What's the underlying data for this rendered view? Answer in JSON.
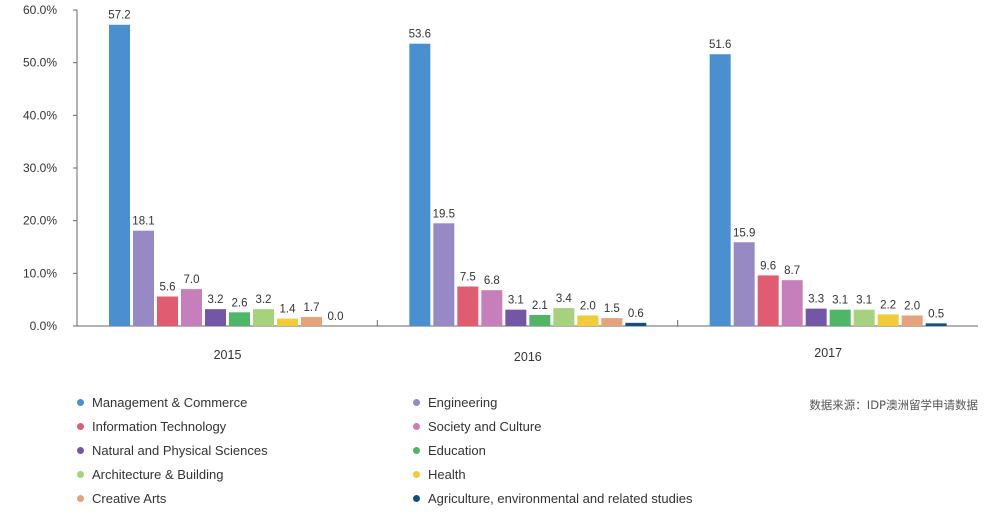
{
  "chart_data": {
    "type": "bar",
    "categories": [
      "2015",
      "2016",
      "2017"
    ],
    "ylim": [
      0,
      60
    ],
    "yticks": [
      "0.0%",
      "10.0%",
      "20.0%",
      "30.0%",
      "40.0%",
      "50.0%",
      "60.0%"
    ],
    "grid": false,
    "legend_position": "bottom",
    "series": [
      {
        "name": "Management & Commerce",
        "color": "#4A90D1",
        "values": [
          57.2,
          53.6,
          51.6
        ]
      },
      {
        "name": "Engineering",
        "color": "#9789C4",
        "values": [
          18.1,
          19.5,
          15.9
        ]
      },
      {
        "name": "Information Technology",
        "color": "#E05C70",
        "values": [
          5.6,
          7.5,
          9.6
        ]
      },
      {
        "name": "Society and Culture",
        "color": "#C77FBC",
        "values": [
          7.0,
          6.8,
          8.7
        ]
      },
      {
        "name": "Natural and Physical Sciences",
        "color": "#7357A6",
        "values": [
          3.2,
          3.1,
          3.3
        ]
      },
      {
        "name": "Education",
        "color": "#4EB666",
        "values": [
          2.6,
          2.1,
          3.1
        ]
      },
      {
        "name": "Architecture & Building",
        "color": "#A6D27E",
        "values": [
          3.2,
          3.4,
          3.1
        ]
      },
      {
        "name": "Health",
        "color": "#F2CB3A",
        "values": [
          1.4,
          2.0,
          2.2
        ]
      },
      {
        "name": "Creative Arts",
        "color": "#E6A27A",
        "values": [
          1.7,
          1.5,
          2.0
        ]
      },
      {
        "name": "Agriculture, environmental and related studies",
        "color": "#104E84",
        "values": [
          0.0,
          0.6,
          0.5
        ]
      }
    ],
    "labels": [
      [
        "57.2",
        "53.6",
        "51.6"
      ],
      [
        "18.1",
        "19.5",
        "15.9"
      ],
      [
        "5.6",
        "7.5",
        "9.6"
      ],
      [
        "7.0",
        "6.8",
        "8.7"
      ],
      [
        "3.2",
        "3.1",
        "3.3"
      ],
      [
        "2.6",
        "2.1",
        "3.1"
      ],
      [
        "3.2",
        "3.4",
        "3.1"
      ],
      [
        "1.4",
        "2.0",
        "2.2"
      ],
      [
        "1.7",
        "1.5",
        "2.0"
      ],
      [
        "0.0",
        "0.6",
        "0.5"
      ]
    ]
  },
  "source_note": "数据来源：IDP澳洲留学申请数据"
}
